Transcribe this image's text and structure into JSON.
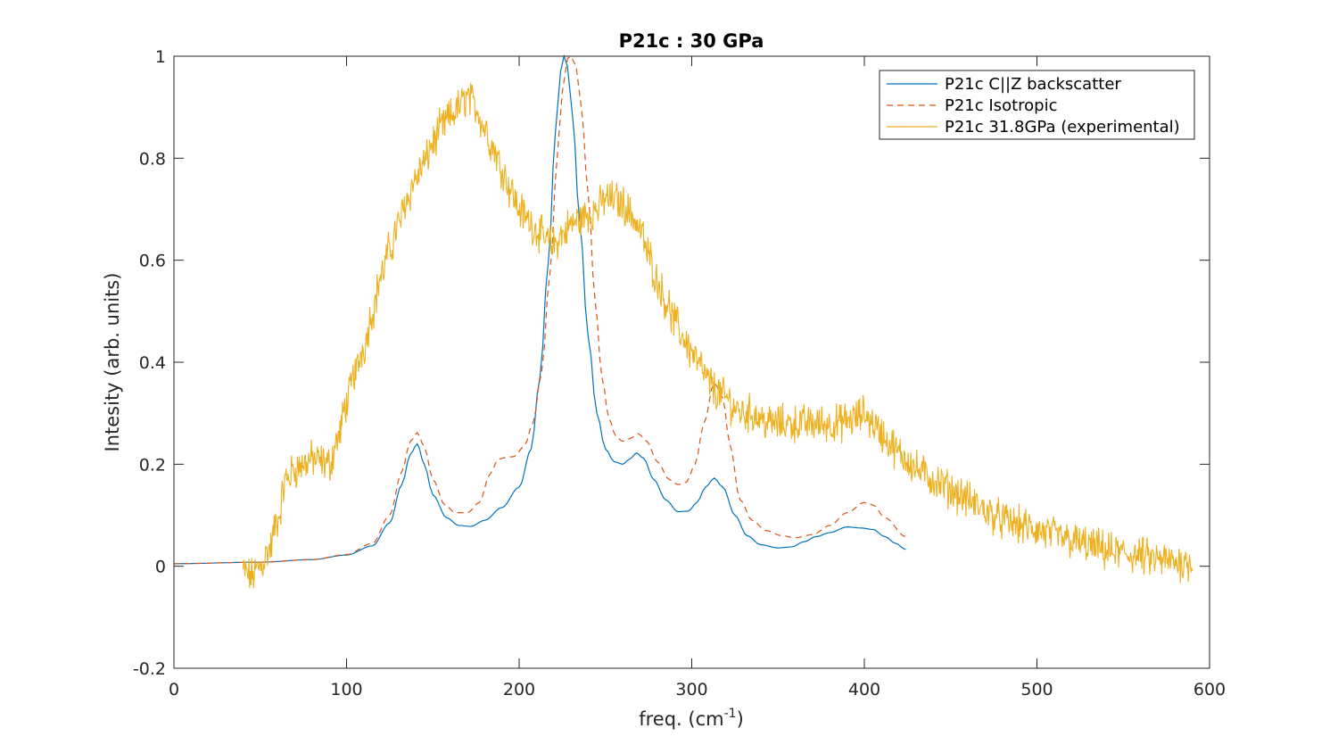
{
  "chart_data": {
    "type": "line",
    "title": "P21c : 30 GPa",
    "xlabel": "freq. (cm",
    "xlabel_superscript": "-1",
    "xlabel_suffix": ")",
    "ylabel": "Intesity (arb. units)",
    "xlim": [
      0,
      600
    ],
    "ylim": [
      -0.2,
      1
    ],
    "xticks": [
      0,
      100,
      200,
      300,
      400,
      500,
      600
    ],
    "xtick_labels": [
      "0",
      "100",
      "200",
      "300",
      "400",
      "500",
      "600"
    ],
    "yticks": [
      -0.2,
      0,
      0.2,
      0.4,
      0.6,
      0.8,
      1
    ],
    "ytick_labels": [
      "-0.2",
      "0",
      "0.2",
      "0.4",
      "0.6",
      "0.8",
      "1"
    ],
    "grid": false,
    "legend_position": "top-right",
    "series": [
      {
        "name": "P21c C||Z backscatter",
        "color": "#0072BD",
        "style": "solid",
        "x": [
          0,
          50,
          80,
          100,
          115,
          125,
          132,
          137,
          141,
          145,
          150,
          158,
          165,
          172,
          180,
          190,
          200,
          207,
          212,
          217,
          221,
          224,
          226,
          228,
          231,
          235,
          240,
          245,
          250,
          255,
          260,
          264,
          268,
          272,
          278,
          285,
          292,
          298,
          303,
          308,
          313,
          318,
          325,
          332,
          340,
          350,
          358,
          365,
          372,
          380,
          390,
          398,
          405,
          412,
          418,
          424
        ],
        "y": [
          0.005,
          0.008,
          0.013,
          0.022,
          0.04,
          0.085,
          0.16,
          0.22,
          0.24,
          0.2,
          0.14,
          0.095,
          0.08,
          0.078,
          0.09,
          0.115,
          0.155,
          0.23,
          0.37,
          0.6,
          0.85,
          0.97,
          1.0,
          0.98,
          0.88,
          0.68,
          0.45,
          0.3,
          0.23,
          0.205,
          0.2,
          0.21,
          0.222,
          0.212,
          0.17,
          0.13,
          0.107,
          0.108,
          0.125,
          0.155,
          0.173,
          0.155,
          0.1,
          0.06,
          0.042,
          0.036,
          0.038,
          0.048,
          0.058,
          0.066,
          0.077,
          0.075,
          0.072,
          0.058,
          0.045,
          0.033
        ]
      },
      {
        "name": "P21c Isotropic",
        "color": "#D95319",
        "style": "dashed",
        "x": [
          0,
          50,
          80,
          100,
          115,
          125,
          132,
          137,
          141,
          145,
          150,
          157,
          163,
          170,
          177,
          183,
          188,
          192,
          197,
          203,
          208,
          213,
          218,
          222,
          225,
          228,
          230,
          233,
          236,
          240,
          244,
          248,
          252,
          256,
          260,
          264,
          269,
          274,
          280,
          287,
          292,
          297,
          302,
          307,
          313,
          318,
          322,
          328,
          335,
          343,
          352,
          360,
          370,
          380,
          390,
          400,
          405,
          412,
          424
        ],
        "y": [
          0.005,
          0.008,
          0.013,
          0.023,
          0.045,
          0.1,
          0.185,
          0.245,
          0.262,
          0.235,
          0.17,
          0.12,
          0.105,
          0.105,
          0.125,
          0.18,
          0.21,
          0.213,
          0.215,
          0.235,
          0.28,
          0.38,
          0.58,
          0.8,
          0.93,
          0.995,
          1.0,
          0.98,
          0.9,
          0.73,
          0.52,
          0.37,
          0.29,
          0.255,
          0.245,
          0.25,
          0.26,
          0.245,
          0.205,
          0.17,
          0.16,
          0.165,
          0.2,
          0.28,
          0.36,
          0.33,
          0.24,
          0.13,
          0.09,
          0.07,
          0.06,
          0.056,
          0.062,
          0.08,
          0.105,
          0.125,
          0.12,
          0.095,
          0.058
        ]
      },
      {
        "name": "P21c 31.8GPa (experimental)",
        "color": "#EDB120",
        "style": "solid-noisy",
        "x": [
          40,
          45,
          50,
          55,
          60,
          65,
          70,
          75,
          80,
          85,
          90,
          95,
          100,
          105,
          110,
          115,
          120,
          125,
          130,
          135,
          140,
          145,
          150,
          155,
          160,
          165,
          170,
          175,
          180,
          185,
          190,
          195,
          200,
          205,
          210,
          215,
          220,
          225,
          230,
          235,
          240,
          245,
          250,
          255,
          260,
          265,
          270,
          275,
          280,
          285,
          290,
          295,
          300,
          305,
          310,
          315,
          320,
          325,
          330,
          335,
          340,
          345,
          350,
          355,
          360,
          365,
          370,
          375,
          380,
          385,
          390,
          395,
          400,
          405,
          410,
          415,
          420,
          425,
          430,
          435,
          440,
          445,
          450,
          455,
          460,
          465,
          470,
          475,
          480,
          485,
          490,
          495,
          500,
          505,
          510,
          515,
          520,
          525,
          530,
          535,
          540,
          545,
          550,
          555,
          560,
          565,
          570,
          575,
          580,
          585,
          590
        ],
        "y": [
          -0.01,
          -0.02,
          0.0,
          0.03,
          0.09,
          0.17,
          0.19,
          0.2,
          0.21,
          0.205,
          0.2,
          0.25,
          0.32,
          0.38,
          0.43,
          0.5,
          0.57,
          0.62,
          0.67,
          0.72,
          0.76,
          0.79,
          0.83,
          0.86,
          0.88,
          0.9,
          0.92,
          0.9,
          0.86,
          0.82,
          0.78,
          0.74,
          0.7,
          0.68,
          0.66,
          0.64,
          0.63,
          0.65,
          0.67,
          0.68,
          0.69,
          0.7,
          0.72,
          0.72,
          0.71,
          0.69,
          0.66,
          0.61,
          0.56,
          0.52,
          0.48,
          0.45,
          0.42,
          0.39,
          0.36,
          0.34,
          0.33,
          0.31,
          0.3,
          0.3,
          0.29,
          0.28,
          0.28,
          0.28,
          0.28,
          0.28,
          0.28,
          0.28,
          0.28,
          0.28,
          0.285,
          0.29,
          0.3,
          0.28,
          0.26,
          0.24,
          0.22,
          0.21,
          0.19,
          0.18,
          0.17,
          0.16,
          0.15,
          0.14,
          0.13,
          0.12,
          0.11,
          0.1,
          0.09,
          0.085,
          0.08,
          0.075,
          0.07,
          0.065,
          0.06,
          0.055,
          0.05,
          0.045,
          0.04,
          0.035,
          0.03,
          0.027,
          0.025,
          0.022,
          0.02,
          0.015,
          0.012,
          0.01,
          0.008,
          0.008,
          0.008
        ]
      }
    ]
  }
}
